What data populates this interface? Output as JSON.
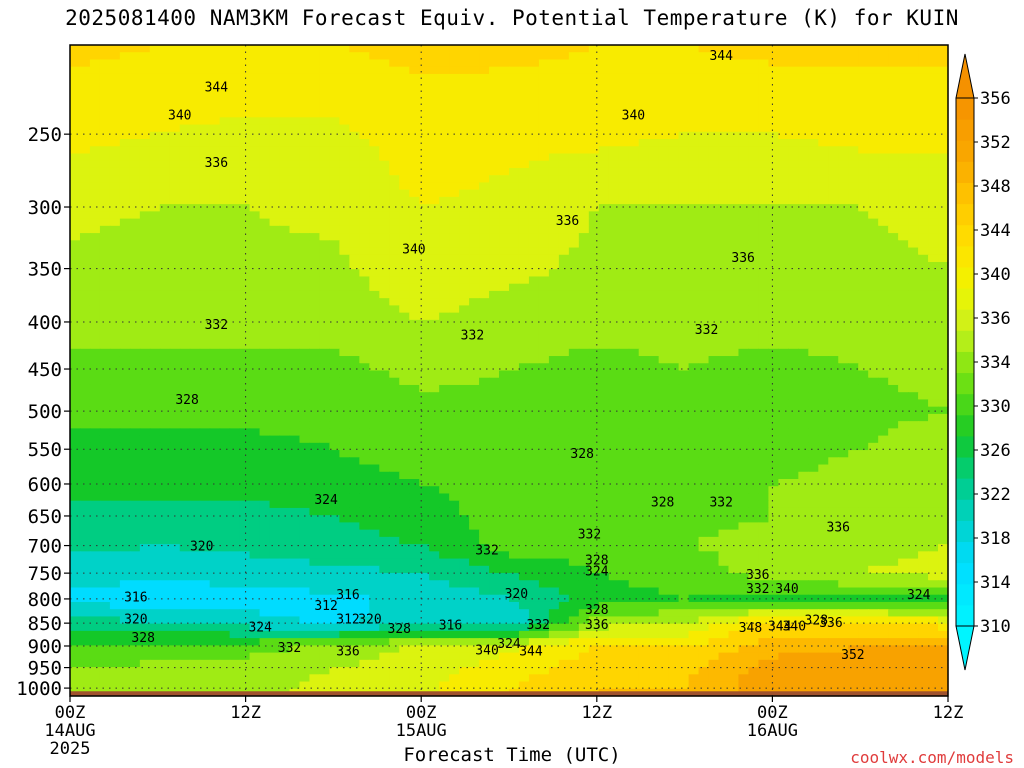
{
  "title": "2025081400 NAM3KM Forecast Equiv. Potential Temperature (K) for KUIN",
  "credit": "coolwx.com/models",
  "chart_data": {
    "type": "heatmap",
    "title": "2025081400 NAM3KM Forecast Equiv. Potential Temperature (K) for KUIN",
    "xlabel": "Forecast Time (UTC)",
    "ylabel": "",
    "x_range_hours": [
      0,
      60
    ],
    "y_range_hPa": [
      200,
      1020
    ],
    "y_scale": "log-pressure (reversed)",
    "grid": "dotted",
    "x_ticks": [
      {
        "hour": 0,
        "label": "00Z",
        "date": "14AUG",
        "year": "2025"
      },
      {
        "hour": 12,
        "label": "12Z"
      },
      {
        "hour": 24,
        "label": "00Z",
        "date": "15AUG"
      },
      {
        "hour": 36,
        "label": "12Z"
      },
      {
        "hour": 48,
        "label": "00Z",
        "date": "16AUG"
      },
      {
        "hour": 60,
        "label": "12Z"
      }
    ],
    "y_ticks": [
      250,
      300,
      350,
      400,
      450,
      500,
      550,
      600,
      650,
      700,
      750,
      800,
      850,
      900,
      950,
      1000
    ],
    "colorbar": {
      "min": 308,
      "max": 358,
      "step": 4,
      "labels": [
        310,
        314,
        318,
        322,
        326,
        330,
        334,
        336,
        340,
        344,
        348,
        352,
        356
      ],
      "position": "right"
    },
    "levels_hPa": [
      200,
      250,
      300,
      350,
      400,
      450,
      500,
      550,
      600,
      650,
      700,
      750,
      800,
      850,
      900,
      950,
      1000
    ],
    "forecast_hours": [
      0,
      6,
      12,
      18,
      24,
      30,
      36,
      42,
      48,
      54,
      60
    ],
    "theta_e_K": [
      [
        345,
        344,
        343,
        344,
        345,
        345,
        344,
        344,
        345,
        345,
        345
      ],
      [
        341,
        340,
        339,
        339,
        342,
        341,
        341,
        340,
        340,
        341,
        341
      ],
      [
        337,
        336,
        336,
        337,
        340,
        339,
        336,
        336,
        336,
        336,
        337
      ],
      [
        335,
        334,
        335,
        335,
        339,
        337,
        335,
        335,
        335,
        335,
        336
      ],
      [
        333,
        333,
        333,
        333,
        336,
        334,
        333,
        333,
        333,
        333,
        334
      ],
      [
        331,
        331,
        331,
        331,
        333,
        332,
        331,
        332,
        331,
        332,
        333
      ],
      [
        329,
        329,
        329,
        329,
        331,
        331,
        330,
        330,
        330,
        331,
        332
      ],
      [
        327,
        327,
        327,
        328,
        330,
        330,
        330,
        331,
        331,
        332,
        334
      ],
      [
        325,
        325,
        325,
        326,
        328,
        329,
        330,
        331,
        332,
        333,
        334
      ],
      [
        323,
        323,
        323,
        324,
        327,
        329,
        330,
        331,
        332,
        333,
        334
      ],
      [
        321,
        320,
        321,
        322,
        324,
        330,
        330,
        332,
        333,
        334,
        336
      ],
      [
        318,
        317,
        318,
        319,
        320,
        324,
        328,
        330,
        334,
        336,
        338
      ],
      [
        315,
        313,
        314,
        315,
        317,
        320,
        326,
        328,
        326,
        327,
        325
      ],
      [
        322,
        320,
        318,
        315,
        318,
        316,
        334,
        336,
        346,
        344,
        342
      ],
      [
        328,
        329,
        330,
        333,
        337,
        339,
        344,
        344,
        350,
        352,
        352
      ],
      [
        332,
        333,
        334,
        336,
        338,
        342,
        346,
        347,
        354,
        354,
        356
      ],
      [
        334,
        335,
        335,
        337,
        339,
        344,
        348,
        348,
        355,
        355,
        356
      ]
    ],
    "contour_labels": [
      {
        "hour": 44.5,
        "p": 205,
        "value": 344
      },
      {
        "hour": 10,
        "p": 222,
        "value": 344
      },
      {
        "hour": 7.5,
        "p": 238,
        "value": 340
      },
      {
        "hour": 38.5,
        "p": 238,
        "value": 340
      },
      {
        "hour": 10,
        "p": 268,
        "value": 336
      },
      {
        "hour": 23.5,
        "p": 333,
        "value": 340
      },
      {
        "hour": 34,
        "p": 310,
        "value": 336
      },
      {
        "hour": 46,
        "p": 340,
        "value": 336
      },
      {
        "hour": 10,
        "p": 402,
        "value": 332
      },
      {
        "hour": 27.5,
        "p": 413,
        "value": 332
      },
      {
        "hour": 43.5,
        "p": 407,
        "value": 332
      },
      {
        "hour": 8,
        "p": 485,
        "value": 328
      },
      {
        "hour": 35,
        "p": 555,
        "value": 328
      },
      {
        "hour": 17.5,
        "p": 623,
        "value": 324
      },
      {
        "hour": 40.5,
        "p": 627,
        "value": 328
      },
      {
        "hour": 44.5,
        "p": 627,
        "value": 332
      },
      {
        "hour": 35.5,
        "p": 679,
        "value": 332
      },
      {
        "hour": 28.5,
        "p": 707,
        "value": 332
      },
      {
        "hour": 52.5,
        "p": 667,
        "value": 336
      },
      {
        "hour": 9,
        "p": 700,
        "value": 320
      },
      {
        "hour": 36,
        "p": 725,
        "value": 328
      },
      {
        "hour": 36,
        "p": 745,
        "value": 324
      },
      {
        "hour": 47,
        "p": 752,
        "value": 336
      },
      {
        "hour": 47,
        "p": 778,
        "value": 332
      },
      {
        "hour": 49,
        "p": 778,
        "value": 340
      },
      {
        "hour": 58,
        "p": 790,
        "value": 324
      },
      {
        "hour": 4.5,
        "p": 795,
        "value": 316
      },
      {
        "hour": 19,
        "p": 790,
        "value": 316
      },
      {
        "hour": 30.5,
        "p": 788,
        "value": 320
      },
      {
        "hour": 36,
        "p": 820,
        "value": 328
      },
      {
        "hour": 17.5,
        "p": 812,
        "value": 312
      },
      {
        "hour": 19,
        "p": 840,
        "value": 312
      },
      {
        "hour": 20.5,
        "p": 840,
        "value": 320
      },
      {
        "hour": 4.5,
        "p": 840,
        "value": 320
      },
      {
        "hour": 13,
        "p": 857,
        "value": 324
      },
      {
        "hour": 22.5,
        "p": 860,
        "value": 328
      },
      {
        "hour": 26,
        "p": 853,
        "value": 316
      },
      {
        "hour": 32,
        "p": 852,
        "value": 332
      },
      {
        "hour": 36,
        "p": 852,
        "value": 336
      },
      {
        "hour": 46.5,
        "p": 858,
        "value": 348
      },
      {
        "hour": 48.5,
        "p": 855,
        "value": 344
      },
      {
        "hour": 49.5,
        "p": 855,
        "value": 340
      },
      {
        "hour": 51,
        "p": 842,
        "value": 328
      },
      {
        "hour": 52,
        "p": 848,
        "value": 336
      },
      {
        "hour": 5,
        "p": 880,
        "value": 328
      },
      {
        "hour": 15,
        "p": 902,
        "value": 332
      },
      {
        "hour": 19,
        "p": 910,
        "value": 336
      },
      {
        "hour": 28.5,
        "p": 908,
        "value": 340
      },
      {
        "hour": 30,
        "p": 893,
        "value": 324
      },
      {
        "hour": 31.5,
        "p": 910,
        "value": 344
      },
      {
        "hour": 53.5,
        "p": 918,
        "value": 352
      }
    ]
  }
}
